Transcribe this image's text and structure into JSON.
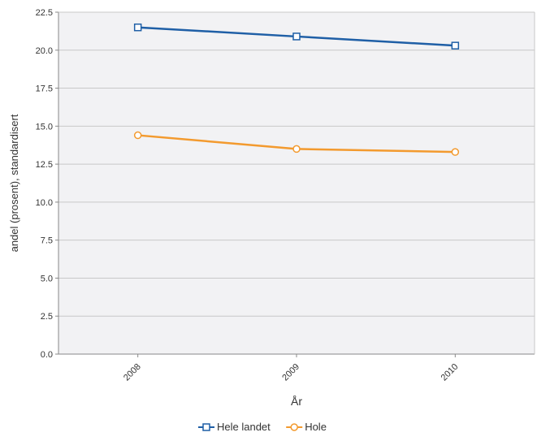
{
  "chart_data": {
    "type": "line",
    "title": "",
    "xlabel": "År",
    "ylabel": "andel (prosent), standardisert",
    "categories": [
      "2008",
      "2009",
      "2010"
    ],
    "ylim": [
      0,
      22.5
    ],
    "yticks": [
      "0.0",
      "2.5",
      "5.0",
      "7.5",
      "10.0",
      "12.5",
      "15.0",
      "17.5",
      "20.0",
      "22.5"
    ],
    "grid": true,
    "legend_position": "bottom-center",
    "series": [
      {
        "name": "Hele landet",
        "values": [
          21.5,
          20.9,
          20.3
        ],
        "color": "#1f5fa6",
        "marker": "square"
      },
      {
        "name": "Hole",
        "values": [
          14.4,
          13.5,
          13.3
        ],
        "color": "#f39a2e",
        "marker": "circle"
      }
    ],
    "plot_background": "#f2f2f4",
    "grid_color": "#c8c8c8"
  }
}
